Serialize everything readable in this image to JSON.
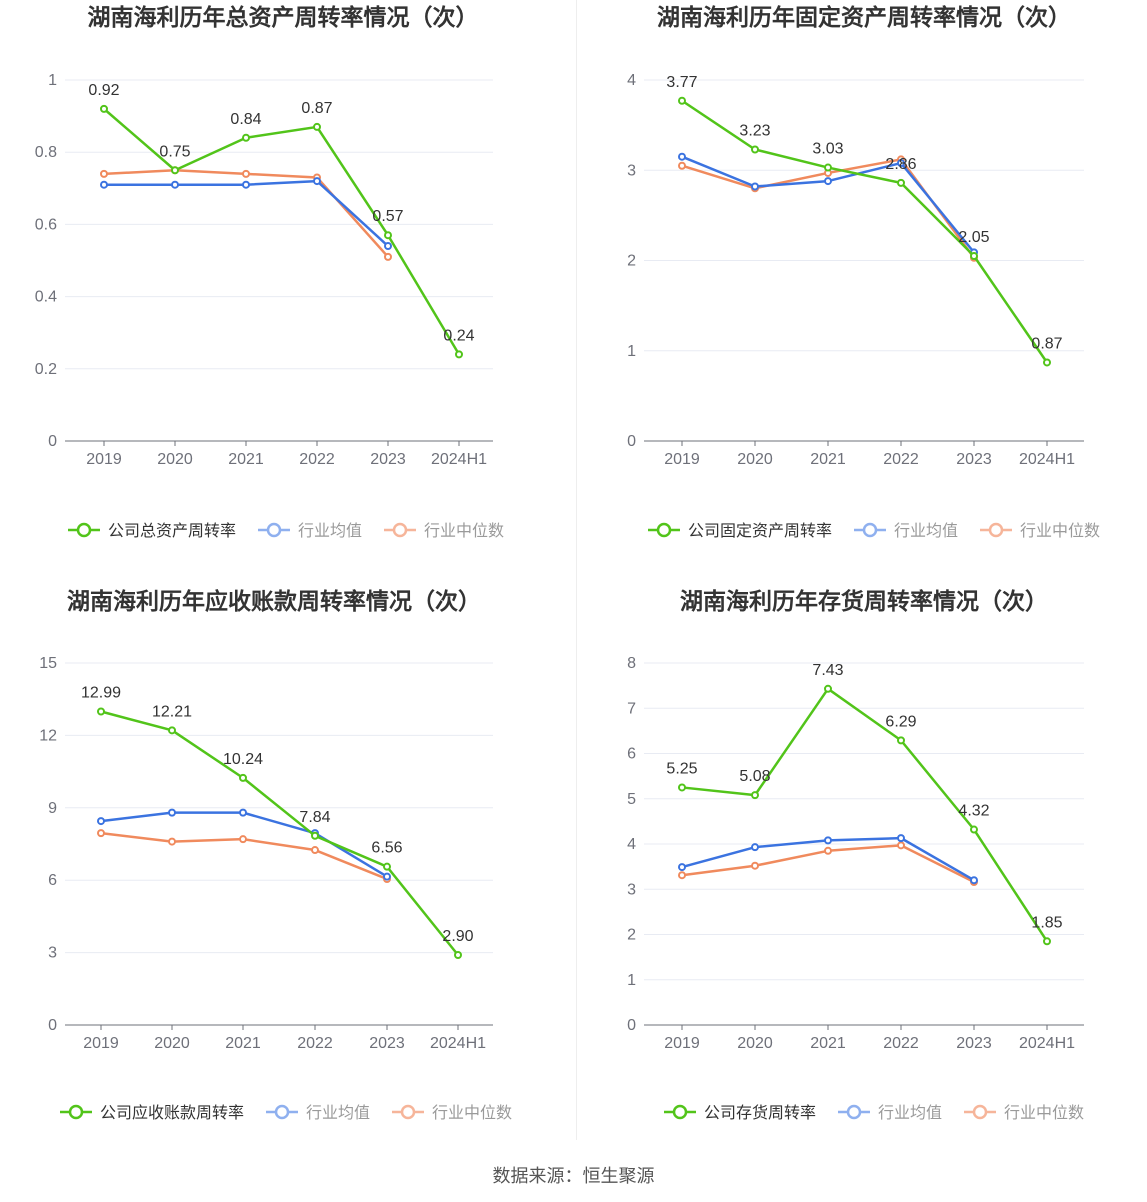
{
  "source": "数据来源：恒生聚源",
  "colors": {
    "company": "#52c41a",
    "avg": "#3b73e0",
    "median": "#f08a5d"
  },
  "chart_data": [
    {
      "type": "line",
      "title": "湖南海利历年总资产周转率情况（次）",
      "categories": [
        "2019",
        "2020",
        "2021",
        "2022",
        "2023",
        "2024H1"
      ],
      "ylim": [
        0,
        1
      ],
      "yticks": [
        "0",
        "0.2",
        "0.4",
        "0.6",
        "0.8",
        "1"
      ],
      "ytick_values": [
        0,
        0.2,
        0.4,
        0.6,
        0.8,
        1
      ],
      "series": [
        {
          "name": "公司总资产周转率",
          "values": [
            0.92,
            0.75,
            0.84,
            0.87,
            0.57,
            0.24
          ],
          "labels": [
            "0.92",
            "0.75",
            "0.84",
            "0.87",
            "0.57",
            "0.24"
          ]
        },
        {
          "name": "行业均值",
          "values": [
            0.71,
            0.71,
            0.71,
            0.72,
            0.54,
            null
          ]
        },
        {
          "name": "行业中位数",
          "values": [
            0.74,
            0.75,
            0.74,
            0.73,
            0.51,
            null
          ]
        }
      ]
    },
    {
      "type": "line",
      "title": "湖南海利历年固定资产周转率情况（次）",
      "categories": [
        "2019",
        "2020",
        "2021",
        "2022",
        "2023",
        "2024H1"
      ],
      "ylim": [
        0,
        4
      ],
      "yticks": [
        "0",
        "1",
        "2",
        "3",
        "4"
      ],
      "ytick_values": [
        0,
        1,
        2,
        3,
        4
      ],
      "series": [
        {
          "name": "公司固定资产周转率",
          "values": [
            3.77,
            3.23,
            3.03,
            2.86,
            2.05,
            0.87
          ],
          "labels": [
            "3.77",
            "3.23",
            "3.03",
            "2.86",
            "2.05",
            "0.87"
          ]
        },
        {
          "name": "行业均值",
          "values": [
            3.15,
            2.82,
            2.88,
            3.08,
            2.09,
            null
          ]
        },
        {
          "name": "行业中位数",
          "values": [
            3.05,
            2.8,
            2.97,
            3.12,
            2.03,
            null
          ]
        }
      ]
    },
    {
      "type": "line",
      "title": "湖南海利历年应收账款周转率情况（次）",
      "categories": [
        "2019",
        "2020",
        "2021",
        "2022",
        "2023",
        "2024H1"
      ],
      "ylim": [
        0,
        15
      ],
      "yticks": [
        "0",
        "3",
        "6",
        "9",
        "12",
        "15"
      ],
      "ytick_values": [
        0,
        3,
        6,
        9,
        12,
        15
      ],
      "series": [
        {
          "name": "公司应收账款周转率",
          "values": [
            12.99,
            12.21,
            10.24,
            7.84,
            6.56,
            2.9
          ],
          "labels": [
            "12.99",
            "12.21",
            "10.24",
            "7.84",
            "6.56",
            "2.90"
          ]
        },
        {
          "name": "行业均值",
          "values": [
            8.45,
            8.8,
            8.8,
            7.95,
            6.15,
            null
          ]
        },
        {
          "name": "行业中位数",
          "values": [
            7.95,
            7.6,
            7.7,
            7.25,
            6.05,
            null
          ]
        }
      ]
    },
    {
      "type": "line",
      "title": "湖南海利历年存货周转率情况（次）",
      "categories": [
        "2019",
        "2020",
        "2021",
        "2022",
        "2023",
        "2024H1"
      ],
      "ylim": [
        0,
        8
      ],
      "yticks": [
        "0",
        "1",
        "2",
        "3",
        "4",
        "5",
        "6",
        "7",
        "8"
      ],
      "ytick_values": [
        0,
        1,
        2,
        3,
        4,
        5,
        6,
        7,
        8
      ],
      "series": [
        {
          "name": "公司存货周转率",
          "values": [
            5.25,
            5.08,
            7.43,
            6.29,
            4.32,
            1.85
          ],
          "labels": [
            "5.25",
            "5.08",
            "7.43",
            "6.29",
            "4.32",
            "1.85"
          ]
        },
        {
          "name": "行业均值",
          "values": [
            3.49,
            3.93,
            4.08,
            4.13,
            3.2,
            null
          ]
        },
        {
          "name": "行业中位数",
          "values": [
            3.31,
            3.52,
            3.85,
            3.97,
            3.16,
            null
          ]
        }
      ]
    }
  ]
}
